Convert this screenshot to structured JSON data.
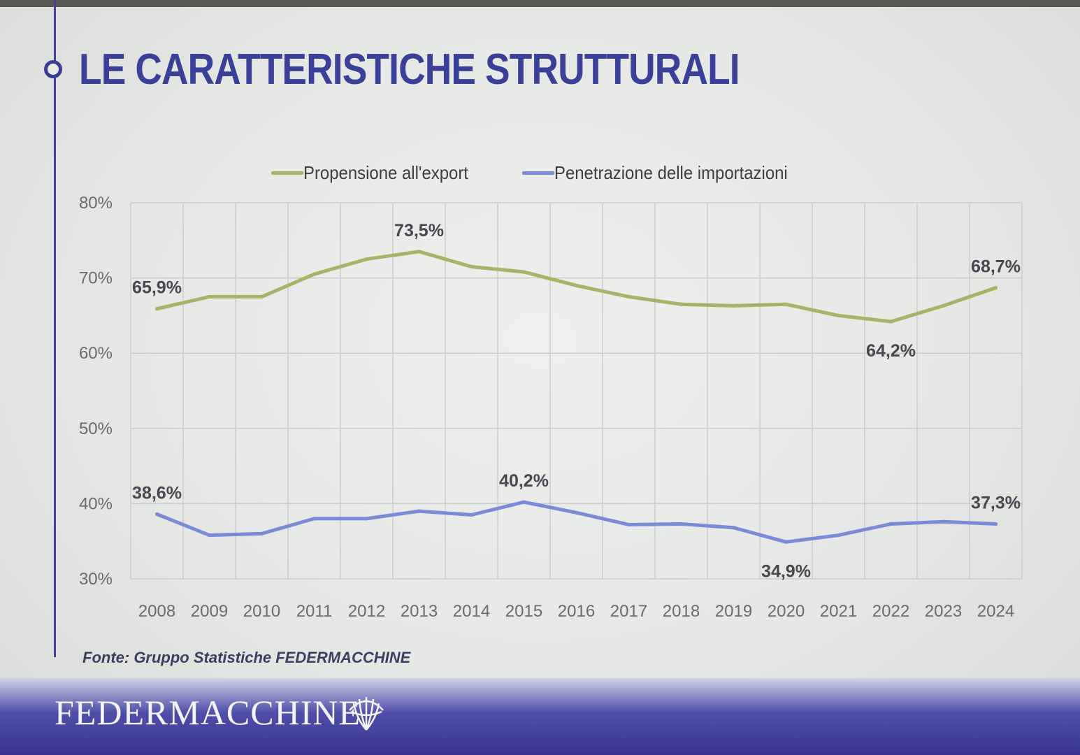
{
  "slide": {
    "title": "LE CARATTERISTICHE STRUTTURALI",
    "source": "Fonte: Gruppo Statistiche FEDERMACCHINE",
    "footer_logo": "FEDERMACCHINE"
  },
  "chart_data": {
    "type": "line",
    "categories": [
      "2008",
      "2009",
      "2010",
      "2011",
      "2012",
      "2013",
      "2014",
      "2015",
      "2016",
      "2017",
      "2018",
      "2019",
      "2020",
      "2021",
      "2022",
      "2023",
      "2024"
    ],
    "ylim": [
      30,
      80
    ],
    "yticks": [
      "30%",
      "40%",
      "50%",
      "60%",
      "70%",
      "80%"
    ],
    "grid": true,
    "legend_position": "top-center",
    "series": [
      {
        "name": "Propensione all'export",
        "color": "#aab26a",
        "values": [
          65.9,
          67.5,
          67.5,
          70.5,
          72.5,
          73.5,
          71.5,
          70.8,
          69.0,
          67.5,
          66.5,
          66.3,
          66.5,
          65.0,
          64.2,
          66.3,
          68.7
        ],
        "labels": [
          {
            "index": 0,
            "text": "65,9%",
            "position": "above"
          },
          {
            "index": 5,
            "text": "73,5%",
            "position": "above"
          },
          {
            "index": 14,
            "text": "64,2%",
            "position": "below"
          },
          {
            "index": 16,
            "text": "68,7%",
            "position": "above"
          }
        ]
      },
      {
        "name": "Penetrazione delle importazioni",
        "color": "#7b8bd6",
        "values": [
          38.6,
          35.8,
          36.0,
          38.0,
          38.0,
          39.0,
          38.5,
          40.2,
          38.8,
          37.2,
          37.3,
          36.8,
          34.9,
          35.8,
          37.3,
          37.6,
          37.3
        ],
        "labels": [
          {
            "index": 0,
            "text": "38,6%",
            "position": "above"
          },
          {
            "index": 7,
            "text": "40,2%",
            "position": "above"
          },
          {
            "index": 12,
            "text": "34,9%",
            "position": "below"
          },
          {
            "index": 16,
            "text": "37,3%",
            "position": "above"
          }
        ]
      }
    ]
  }
}
